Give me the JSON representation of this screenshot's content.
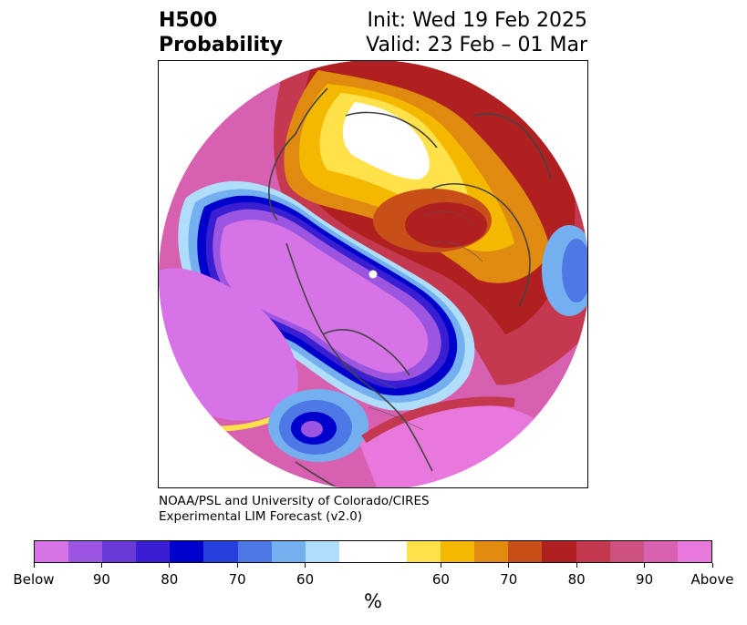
{
  "title": {
    "left_line1": "H500",
    "left_line2": "Probability",
    "right_line1": "Init: Wed 19 Feb 2025",
    "right_line2": "Valid: 23 Feb – 01 Mar"
  },
  "credit": {
    "line1": "NOAA/PSL and University of Colorado/CIRES",
    "line2": "Experimental LIM Forecast (v2.0)"
  },
  "colorbar": {
    "unit": "%",
    "colors": [
      "#d673e6",
      "#9b55e0",
      "#6a3ad8",
      "#3a1fd2",
      "#0000cd",
      "#2540dc",
      "#4d78e6",
      "#74b0f0",
      "#b0defa",
      "#ffffff",
      "#ffe14a",
      "#f5b800",
      "#e08a10",
      "#c85018",
      "#b02020",
      "#c43850",
      "#cc5080",
      "#d860b0",
      "#e878dc"
    ],
    "tick_labels": [
      "Below",
      "90",
      "80",
      "70",
      "60",
      "60",
      "70",
      "80",
      "90",
      "Above"
    ]
  },
  "palette": {
    "below_strong": "#d673e6",
    "below_mid": "#9b55e0",
    "below_deep": "#3a1fd2",
    "below_core": "#0000cd",
    "below_light": "#74b0f0",
    "below_pale": "#b0defa",
    "above_yellow": "#ffe14a",
    "above_gold": "#f5b800",
    "above_orange": "#e08a10",
    "above_rust": "#c85018",
    "above_red": "#b02020",
    "above_rose": "#cc5080",
    "above_pink": "#d860b0",
    "coastline": "#444444"
  }
}
